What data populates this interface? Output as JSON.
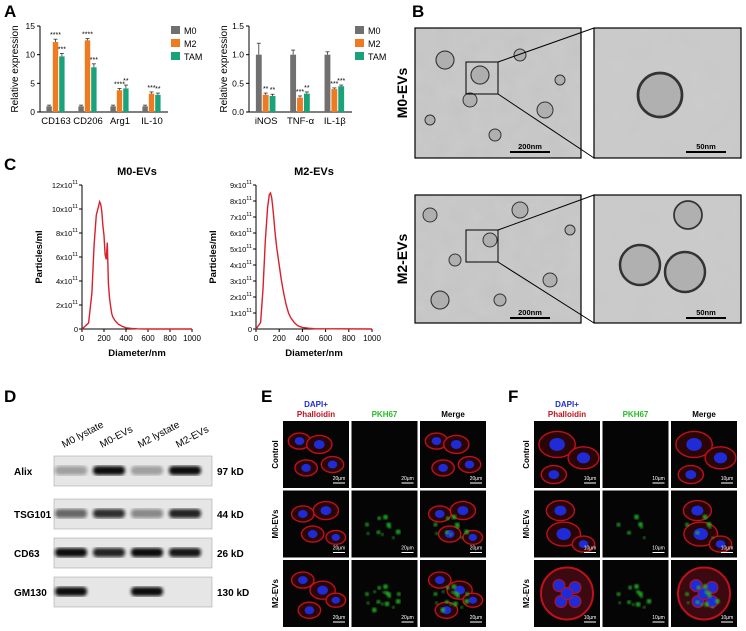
{
  "panels": {
    "A": "A",
    "B": "B",
    "C": "C",
    "D": "D",
    "E": "E",
    "F": "F"
  },
  "colors": {
    "M0": "#707070",
    "M2": "#f07a22",
    "TAM": "#1aa37a",
    "curve": "#d8202a",
    "dapi": "#1f2bd6",
    "phalloidin": "#c0101a",
    "pkh67": "#22c022"
  },
  "chart_data": [
    {
      "type": "bar",
      "panel": "A-left",
      "ylabel": "Relative expression",
      "ylim": [
        0,
        15
      ],
      "yticks": [
        "0",
        "5",
        "10",
        "15"
      ],
      "categories": [
        "CD163",
        "CD206",
        "Arg1",
        "IL-10"
      ],
      "series": [
        {
          "name": "M0",
          "values": [
            1.0,
            1.0,
            1.0,
            1.0
          ],
          "errors": [
            0.2,
            0.2,
            0.2,
            0.2
          ]
        },
        {
          "name": "M2",
          "values": [
            12.2,
            12.5,
            3.8,
            3.2
          ],
          "errors": [
            0.5,
            0.3,
            0.3,
            0.3
          ]
        },
        {
          "name": "TAM",
          "values": [
            9.7,
            7.8,
            4.1,
            3.0
          ],
          "errors": [
            0.5,
            0.6,
            0.6,
            0.3
          ]
        }
      ],
      "sig": [
        {
          "cat": 0,
          "series": 1,
          "text": "****"
        },
        {
          "cat": 0,
          "series": 2,
          "text": "***"
        },
        {
          "cat": 1,
          "series": 1,
          "text": "****"
        },
        {
          "cat": 1,
          "series": 2,
          "text": "***"
        },
        {
          "cat": 2,
          "series": 1,
          "text": "****"
        },
        {
          "cat": 2,
          "series": 2,
          "text": "**"
        },
        {
          "cat": 3,
          "series": 1,
          "text": "***"
        },
        {
          "cat": 3,
          "series": 2,
          "text": "**"
        }
      ],
      "legend": [
        "M0",
        "M2",
        "TAM"
      ]
    },
    {
      "type": "bar",
      "panel": "A-right",
      "ylabel": "Relative expression",
      "ylim": [
        0,
        1.5
      ],
      "yticks": [
        "0.0",
        "0.5",
        "1.0",
        "1.5"
      ],
      "categories": [
        "iNOS",
        "TNF-α",
        "IL-1β"
      ],
      "series": [
        {
          "name": "M0",
          "values": [
            1.0,
            1.0,
            1.0
          ],
          "errors": [
            0.2,
            0.08,
            0.05
          ]
        },
        {
          "name": "M2",
          "values": [
            0.3,
            0.25,
            0.4
          ],
          "errors": [
            0.03,
            0.03,
            0.02
          ]
        },
        {
          "name": "TAM",
          "values": [
            0.28,
            0.32,
            0.45
          ],
          "errors": [
            0.03,
            0.03,
            0.02
          ]
        }
      ],
      "sig": [
        {
          "cat": 0,
          "series": 1,
          "text": "**"
        },
        {
          "cat": 0,
          "series": 2,
          "text": "**"
        },
        {
          "cat": 1,
          "series": 1,
          "text": "***"
        },
        {
          "cat": 1,
          "series": 2,
          "text": "**"
        },
        {
          "cat": 2,
          "series": 1,
          "text": "***"
        },
        {
          "cat": 2,
          "series": 2,
          "text": "***"
        }
      ],
      "legend": [
        "M0",
        "M2",
        "TAM"
      ]
    },
    {
      "type": "line",
      "panel": "C-left",
      "title": "M0-EVs",
      "xlabel": "Diameter/nm",
      "ylabel": "Particles/ml",
      "xlim": [
        0,
        1000
      ],
      "ylim": [
        0,
        12
      ],
      "xticks": [
        "0",
        "200",
        "400",
        "600",
        "800",
        "1000"
      ],
      "yticks": [
        {
          "v": 0,
          "base": "0",
          "exp": ""
        },
        {
          "v": 2,
          "base": "2x10",
          "exp": "11"
        },
        {
          "v": 4,
          "base": "4x10",
          "exp": "11"
        },
        {
          "v": 6,
          "base": "6x10",
          "exp": "11"
        },
        {
          "v": 8,
          "base": "8x10",
          "exp": "11"
        },
        {
          "v": 10,
          "base": "10x10",
          "exp": "11"
        },
        {
          "v": 12,
          "base": "12x10",
          "exp": "11"
        }
      ],
      "x": [
        0,
        60,
        90,
        110,
        130,
        150,
        160,
        170,
        180,
        190,
        200,
        210,
        220,
        230,
        240,
        250,
        260,
        270,
        280,
        300,
        330,
        360,
        400,
        450,
        500,
        600,
        1000
      ],
      "y": [
        0,
        0.5,
        3,
        7,
        9.5,
        10.2,
        10.6,
        10.4,
        9.8,
        8.6,
        7.8,
        6.2,
        5.8,
        7.2,
        3.8,
        2.6,
        1.9,
        1.3,
        1.0,
        0.7,
        0.4,
        0.25,
        0.1,
        0.05,
        0.02,
        0,
        0
      ]
    },
    {
      "type": "line",
      "panel": "C-right",
      "title": "M2-EVs",
      "xlabel": "Diameter/nm",
      "ylabel": "Particles/ml",
      "xlim": [
        0,
        1000
      ],
      "ylim": [
        0,
        9
      ],
      "xticks": [
        "0",
        "200",
        "400",
        "600",
        "800",
        "1000"
      ],
      "yticks": [
        {
          "v": 0,
          "base": "0",
          "exp": ""
        },
        {
          "v": 1,
          "base": "1x10",
          "exp": "11"
        },
        {
          "v": 2,
          "base": "2x10",
          "exp": "11"
        },
        {
          "v": 3,
          "base": "3x10",
          "exp": "11"
        },
        {
          "v": 4,
          "base": "4x10",
          "exp": "11"
        },
        {
          "v": 5,
          "base": "5x10",
          "exp": "11"
        },
        {
          "v": 6,
          "base": "6x10",
          "exp": "11"
        },
        {
          "v": 7,
          "base": "7x10",
          "exp": "11"
        },
        {
          "v": 8,
          "base": "8x10",
          "exp": "11"
        },
        {
          "v": 9,
          "base": "9x10",
          "exp": "11"
        }
      ],
      "x": [
        0,
        40,
        60,
        80,
        100,
        115,
        125,
        135,
        145,
        155,
        165,
        180,
        200,
        220,
        240,
        260,
        280,
        300,
        330,
        360,
        400,
        450,
        500,
        1000
      ],
      "y": [
        0,
        0.4,
        2.5,
        5.5,
        7.6,
        8.4,
        8.5,
        8.2,
        7.6,
        6.8,
        6.0,
        5.0,
        4.0,
        3.0,
        2.2,
        1.5,
        1.0,
        0.7,
        0.4,
        0.2,
        0.1,
        0.05,
        0.02,
        0
      ]
    }
  ],
  "tem": {
    "rows": [
      "M0-EVs",
      "M2-EVs"
    ],
    "scale_low": "200nm",
    "scale_high": "50nm"
  },
  "western": {
    "lanes": [
      "M0 lystate",
      "M0-EVs",
      "M2 lystate",
      "M2-EVs"
    ],
    "rows": [
      {
        "protein": "Alix",
        "size": "97 kD"
      },
      {
        "protein": "TSG101",
        "size": "44 kD"
      },
      {
        "protein": "CD63",
        "size": "26 kD"
      },
      {
        "protein": "GM130",
        "size": "130 kD"
      }
    ]
  },
  "panelE": {
    "col_dapi": "DAPI+",
    "col_phalloidin": "Phalloidin",
    "col_pkh": "PKH67",
    "col_merge": "Merge",
    "rows": [
      "Control",
      "M0-EVs",
      "M2-EVs"
    ],
    "scale": "20μm"
  },
  "panelF": {
    "col_dapi": "DAPI+",
    "col_phalloidin": "Phalloidin",
    "col_pkh": "PKH67",
    "col_merge": "Merge",
    "rows": [
      "Control",
      "M0-EVs",
      "M2-EVs"
    ],
    "scale": "10μm"
  }
}
